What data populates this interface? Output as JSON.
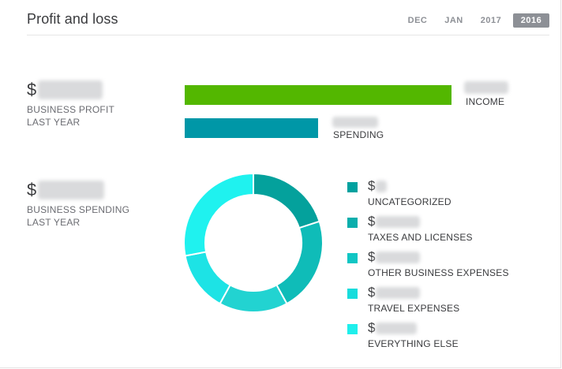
{
  "widget": {
    "title": "Profit and loss",
    "periods": [
      {
        "label": "DEC",
        "selected": false
      },
      {
        "label": "JAN",
        "selected": false
      },
      {
        "label": "2017",
        "selected": false
      },
      {
        "label": "2016",
        "selected": true
      }
    ]
  },
  "profit": {
    "currency_symbol": "$",
    "caption_line1": "BUSINESS PROFIT",
    "caption_line2": "LAST YEAR"
  },
  "bars": [
    {
      "label": "INCOME",
      "color": "#53b700",
      "relative_value": 1.0
    },
    {
      "label": "SPENDING",
      "color": "#0097a7",
      "relative_value": 0.5
    }
  ],
  "spending": {
    "currency_symbol": "$",
    "caption_line1": "BUSINESS SPENDING",
    "caption_line2": "LAST YEAR"
  },
  "chart_data": {
    "type": "pie",
    "categories": [
      "UNCATEGORIZED",
      "TAXES AND LICENSES",
      "OTHER BUSINESS EXPENSES",
      "TRAVEL EXPENSES",
      "EVERYTHING ELSE"
    ],
    "values": [
      20,
      22,
      16,
      14,
      28
    ],
    "colors": [
      "#04a19c",
      "#0fbcb8",
      "#22d3d1",
      "#1de3e5",
      "#1ff2ef"
    ]
  },
  "legend": [
    {
      "currency_symbol": "$",
      "label": "UNCATEGORIZED",
      "color": "#00a19f"
    },
    {
      "currency_symbol": "$",
      "label": "TAXES AND LICENSES",
      "color": "#0aaeac"
    },
    {
      "currency_symbol": "$",
      "label": "OTHER BUSINESS EXPENSES",
      "color": "#10c6c4"
    },
    {
      "currency_symbol": "$",
      "label": "TRAVEL EXPENSES",
      "color": "#18dcdc"
    },
    {
      "currency_symbol": "$",
      "label": "EVERYTHING ELSE",
      "color": "#1fefec"
    }
  ]
}
